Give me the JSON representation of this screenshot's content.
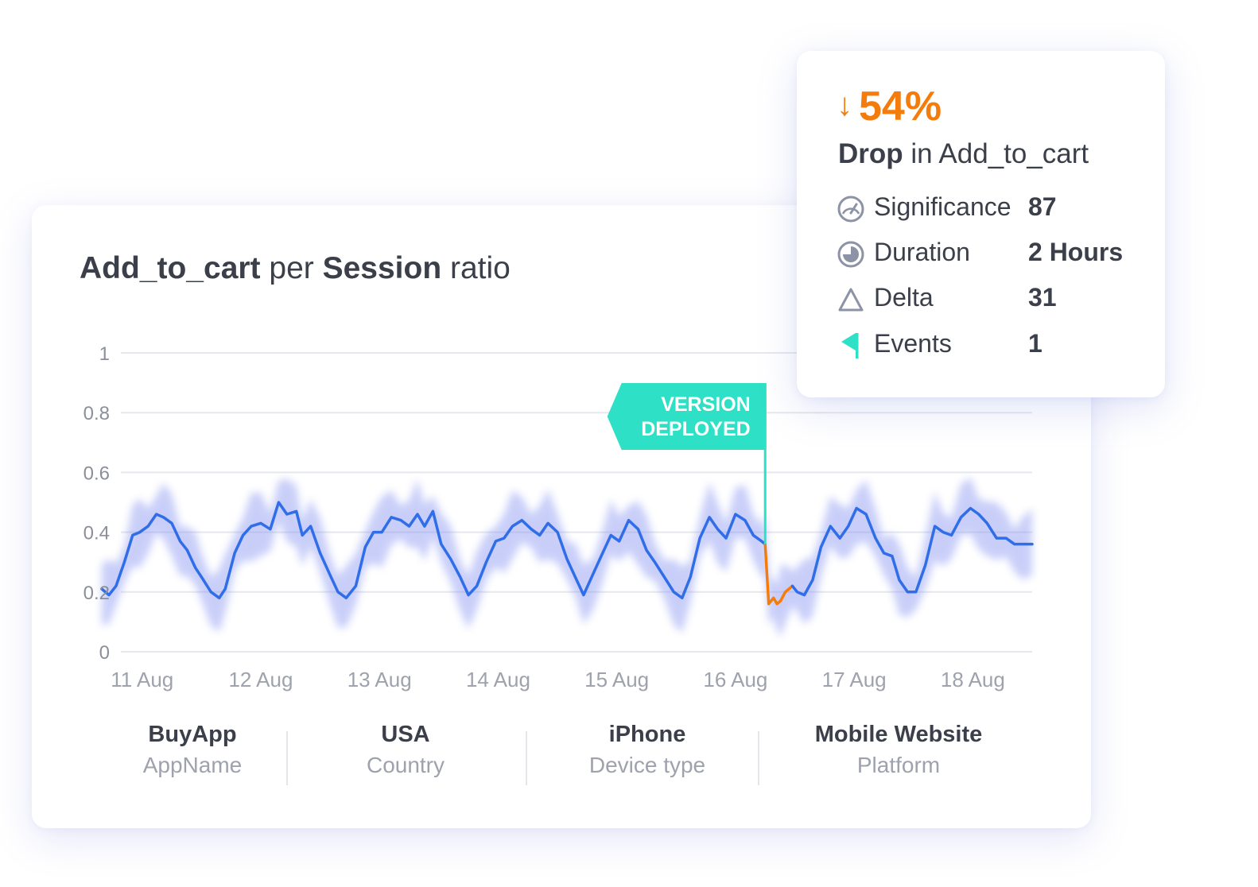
{
  "title": {
    "bold1": "Add_to_cart",
    "plain1": " per ",
    "bold2": "Session",
    "plain2": " ratio"
  },
  "tooltip": {
    "percent": "54%",
    "drop_word": "Drop",
    "drop_rest": " in Add_to_cart",
    "metrics": [
      {
        "label": "Significance",
        "value": "87",
        "icon": "gauge-icon"
      },
      {
        "label": "Duration",
        "value": "2 Hours",
        "icon": "clock-icon"
      },
      {
        "label": "Delta",
        "value": "31",
        "icon": "delta-triangle-icon"
      },
      {
        "label": "Events",
        "value": "1",
        "icon": "flag-icon"
      }
    ]
  },
  "dimensions": [
    {
      "value": "BuyApp",
      "label": "AppName"
    },
    {
      "value": "USA",
      "label": "Country"
    },
    {
      "value": "iPhone",
      "label": "Device type"
    },
    {
      "value": "Mobile Website",
      "label": "Platform"
    }
  ],
  "colors": {
    "line": "#2f6ee8",
    "band": "#7f8df0",
    "anomaly": "#f47c0c",
    "annotation": "#2ee0c5",
    "text": "#3b3f4a",
    "muted": "#9ea2ad",
    "grid": "#e6e8ee"
  },
  "chart_data": {
    "type": "line",
    "title": "Add_to_cart per Session ratio",
    "ylim": [
      0,
      1
    ],
    "yticks": [
      "0",
      "0.2",
      "0.4",
      "0.6",
      "0.8",
      "1"
    ],
    "xlim": [
      10.66,
      18.5
    ],
    "xticks": [
      {
        "x": 11,
        "label": "11 Aug"
      },
      {
        "x": 12,
        "label": "12 Aug"
      },
      {
        "x": 13,
        "label": "13 Aug"
      },
      {
        "x": 14,
        "label": "14 Aug"
      },
      {
        "x": 15,
        "label": "15 Aug"
      },
      {
        "x": 16,
        "label": "16 Aug"
      },
      {
        "x": 17,
        "label": "17 Aug"
      },
      {
        "x": 18,
        "label": "18 Aug"
      }
    ],
    "band_width": 0.12,
    "series": [
      {
        "x": [
          10.66,
          10.72,
          10.78,
          10.85,
          10.92,
          10.98,
          11.05,
          11.12,
          11.18,
          11.25,
          11.32,
          11.38,
          11.45,
          11.5,
          11.58,
          11.65,
          11.7,
          11.78,
          11.85,
          11.92,
          12.0,
          12.08,
          12.15,
          12.22,
          12.3,
          12.35,
          12.42,
          12.5,
          12.58,
          12.65,
          12.72,
          12.8,
          12.88,
          12.95,
          13.02,
          13.1,
          13.18,
          13.25,
          13.32,
          13.38,
          13.45,
          13.52,
          13.6,
          13.68,
          13.75,
          13.82,
          13.9,
          13.98,
          14.05,
          14.12,
          14.2,
          14.28,
          14.35,
          14.42,
          14.5,
          14.58,
          14.65,
          14.72,
          14.8,
          14.88,
          14.95,
          15.02,
          15.1,
          15.18,
          15.25,
          15.32,
          15.4,
          15.48,
          15.55,
          15.62,
          15.7,
          15.78,
          15.85,
          15.92,
          16.0,
          16.08,
          16.15,
          16.22,
          16.25
        ],
        "values": [
          0.21,
          0.19,
          0.22,
          0.3,
          0.39,
          0.4,
          0.42,
          0.46,
          0.45,
          0.43,
          0.37,
          0.34,
          0.28,
          0.25,
          0.2,
          0.18,
          0.21,
          0.33,
          0.39,
          0.42,
          0.43,
          0.41,
          0.5,
          0.46,
          0.47,
          0.39,
          0.42,
          0.33,
          0.26,
          0.2,
          0.18,
          0.22,
          0.35,
          0.4,
          0.4,
          0.45,
          0.44,
          0.42,
          0.46,
          0.42,
          0.47,
          0.36,
          0.31,
          0.25,
          0.19,
          0.22,
          0.3,
          0.37,
          0.38,
          0.42,
          0.44,
          0.41,
          0.39,
          0.43,
          0.4,
          0.31,
          0.25,
          0.19,
          0.26,
          0.33,
          0.39,
          0.37,
          0.44,
          0.41,
          0.34,
          0.3,
          0.25,
          0.2,
          0.18,
          0.25,
          0.38,
          0.45,
          0.41,
          0.38,
          0.46,
          0.44,
          0.39,
          0.37,
          0.36
        ]
      },
      {
        "x": [
          16.25,
          16.28,
          16.32,
          16.35,
          16.38,
          16.42,
          16.48
        ],
        "values": [
          0.36,
          0.16,
          0.18,
          0.16,
          0.17,
          0.2,
          0.22
        ]
      },
      {
        "x": [
          16.48,
          16.52,
          16.58,
          16.65,
          16.72,
          16.8,
          16.88,
          16.95,
          17.02,
          17.1,
          17.18,
          17.25,
          17.32,
          17.38,
          17.45,
          17.52,
          17.6,
          17.68,
          17.75,
          17.82,
          17.9,
          17.98,
          18.05,
          18.12,
          18.2,
          18.28,
          18.35,
          18.42,
          18.5
        ],
        "values": [
          0.22,
          0.2,
          0.19,
          0.24,
          0.35,
          0.42,
          0.38,
          0.42,
          0.48,
          0.46,
          0.38,
          0.33,
          0.32,
          0.24,
          0.2,
          0.2,
          0.29,
          0.42,
          0.4,
          0.39,
          0.45,
          0.48,
          0.46,
          0.43,
          0.38,
          0.38,
          0.36,
          0.36,
          0.36
        ]
      }
    ],
    "annotations": [
      {
        "x": 16.25,
        "label_line1": "VERSION",
        "label_line2": "DEPLOYED"
      }
    ]
  }
}
